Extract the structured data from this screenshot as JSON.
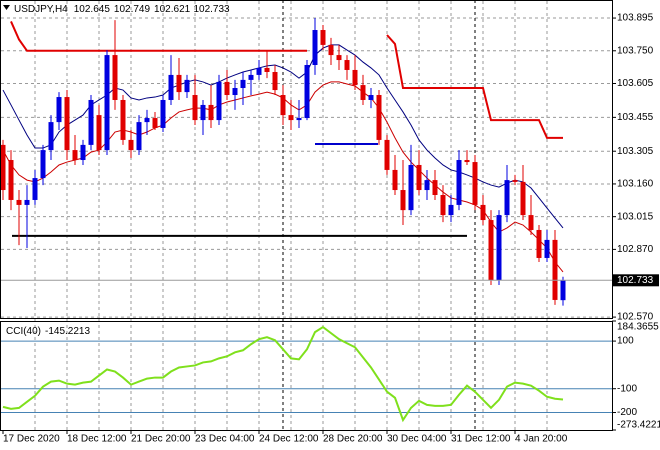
{
  "chart_data": [
    {
      "type": "candlestick",
      "title": "USDJPY,H4",
      "categories": [
        "17 Dec 2020",
        null,
        null,
        null,
        null,
        null,
        null,
        null,
        "18 Dec 12:00",
        null,
        null,
        null,
        null,
        null,
        null,
        null,
        "21 Dec 20:00",
        null,
        null,
        null,
        null,
        null,
        null,
        null,
        "23 Dec 04:00",
        null,
        null,
        null,
        null,
        null,
        null,
        null,
        "24 Dec 12:00",
        null,
        null,
        null,
        null,
        null,
        null,
        null,
        "28 Dec 20:00",
        null,
        null,
        null,
        null,
        null,
        null,
        null,
        "30 Dec 04:00",
        null,
        null,
        null,
        null,
        null,
        null,
        null,
        "31 Dec 12:00",
        null,
        null,
        null,
        null,
        null,
        null,
        null,
        "4 Jan 20:00",
        null,
        null,
        null,
        null,
        null,
        null
      ],
      "ohlc": [
        [
          103.333,
          103.355,
          103.089,
          103.133
        ],
        [
          103.266,
          103.31,
          103.044,
          103.089
        ],
        [
          103.089,
          103.133,
          102.889,
          103.067
        ],
        [
          103.067,
          103.155,
          102.876,
          103.089
        ],
        [
          103.089,
          103.222,
          103.067,
          103.186
        ],
        [
          103.186,
          103.333,
          103.155,
          103.31
        ],
        [
          103.31,
          103.465,
          103.266,
          103.434
        ],
        [
          103.434,
          103.567,
          103.399,
          103.545
        ],
        [
          103.545,
          103.576,
          103.266,
          103.31
        ],
        [
          103.31,
          103.377,
          103.244,
          103.266
        ],
        [
          103.266,
          103.355,
          103.244,
          103.333
        ],
        [
          103.333,
          103.554,
          103.31,
          103.532
        ],
        [
          103.465,
          103.51,
          103.288,
          103.31
        ],
        [
          103.31,
          103.753,
          103.288,
          103.731
        ],
        [
          103.731,
          103.886,
          103.488,
          103.532
        ],
        [
          103.532,
          103.554,
          103.333,
          103.355
        ],
        [
          103.355,
          103.399,
          103.275,
          103.31
        ],
        [
          103.31,
          103.465,
          103.288,
          103.434
        ],
        [
          103.434,
          103.488,
          103.377,
          103.452
        ],
        [
          103.452,
          103.479,
          103.399,
          103.408
        ],
        [
          103.408,
          103.554,
          103.39,
          103.532
        ],
        [
          103.532,
          103.731,
          103.51,
          103.643
        ],
        [
          103.643,
          103.718,
          103.532,
          103.567
        ],
        [
          103.567,
          103.643,
          103.541,
          103.621
        ],
        [
          103.554,
          103.643,
          103.421,
          103.443
        ],
        [
          103.443,
          103.532,
          103.377,
          103.51
        ],
        [
          103.51,
          103.598,
          103.408,
          103.443
        ],
        [
          103.443,
          103.643,
          103.421,
          103.612
        ],
        [
          103.612,
          103.665,
          103.532,
          103.554
        ],
        [
          103.554,
          103.621,
          103.488,
          103.585
        ],
        [
          103.585,
          103.656,
          103.51,
          103.621
        ],
        [
          103.621,
          103.665,
          103.554,
          103.643
        ],
        [
          103.643,
          103.709,
          103.621,
          103.674
        ],
        [
          103.674,
          103.753,
          103.629,
          103.656
        ],
        [
          103.656,
          103.687,
          103.554,
          103.576
        ],
        [
          103.554,
          103.598,
          103.421,
          103.465
        ],
        [
          103.465,
          103.532,
          103.399,
          103.443
        ],
        [
          103.443,
          103.532,
          103.408,
          103.452
        ],
        [
          103.452,
          103.709,
          103.443,
          103.687
        ],
        [
          103.687,
          103.895,
          103.643,
          103.842
        ],
        [
          103.842,
          103.864,
          103.753,
          103.776
        ],
        [
          103.776,
          103.807,
          103.687,
          103.731
        ],
        [
          103.731,
          103.776,
          103.665,
          103.709
        ],
        [
          103.709,
          103.731,
          103.621,
          103.665
        ],
        [
          103.665,
          103.731,
          103.576,
          103.598
        ],
        [
          103.598,
          103.643,
          103.51,
          103.532
        ],
        [
          103.532,
          103.585,
          103.496,
          103.554
        ],
        [
          103.554,
          103.576,
          103.333,
          103.355
        ],
        [
          103.355,
          103.377,
          103.2,
          103.222
        ],
        [
          103.222,
          103.288,
          103.111,
          103.133
        ],
        [
          103.133,
          103.266,
          102.978,
          103.044
        ],
        [
          103.044,
          103.333,
          103.022,
          103.244
        ],
        [
          103.244,
          103.31,
          103.111,
          103.133
        ],
        [
          103.133,
          103.222,
          103.089,
          103.177
        ],
        [
          103.177,
          103.222,
          103.089,
          103.111
        ],
        [
          103.111,
          103.155,
          102.991,
          103.022
        ],
        [
          103.022,
          103.111,
          102.991,
          103.067
        ],
        [
          103.067,
          103.31,
          103.044,
          103.266
        ],
        [
          103.266,
          103.31,
          103.244,
          103.257
        ],
        [
          103.257,
          103.288,
          103.044,
          103.067
        ],
        [
          103.067,
          103.111,
          102.978,
          103
        ],
        [
          103,
          103.044,
          102.712,
          102.734
        ],
        [
          102.734,
          103.044,
          102.712,
          103.022
        ],
        [
          103.022,
          103.244,
          102.991,
          103.177
        ],
        [
          103.177,
          103.2,
          103.155,
          103.169
        ],
        [
          103.169,
          103.244,
          103,
          103.022
        ],
        [
          103.022,
          103.111,
          102.934,
          102.956
        ],
        [
          102.956,
          102.978,
          102.814,
          102.832
        ],
        [
          102.832,
          102.956,
          102.814,
          102.912
        ],
        [
          102.912,
          102.956,
          102.624,
          102.646
        ],
        [
          102.645,
          102.749,
          102.621,
          102.733
        ]
      ],
      "up_color": "#0000e0",
      "down_color": "#e00000",
      "series": [
        {
          "color": "#000080",
          "width": 1,
          "values": [
            103.576,
            103.51,
            103.443,
            103.377,
            103.319,
            103.319,
            103.333,
            103.39,
            103.421,
            103.443,
            103.465,
            103.51,
            103.532,
            103.554,
            103.585,
            103.576,
            103.541,
            103.532,
            103.541,
            103.545,
            103.554,
            103.585,
            103.598,
            103.612,
            103.621,
            103.612,
            103.598,
            103.612,
            103.629,
            103.643,
            103.656,
            103.665,
            103.674,
            103.683,
            103.687,
            103.674,
            103.656,
            103.629,
            103.656,
            103.731,
            103.762,
            103.776,
            103.776,
            103.753,
            103.731,
            103.7,
            103.674,
            103.643,
            103.585,
            103.532,
            103.479,
            103.421,
            103.355,
            103.31,
            103.275,
            103.244,
            103.222,
            103.213,
            103.2,
            103.186,
            103.169,
            103.155,
            103.146,
            103.164,
            103.177,
            103.169,
            103.142,
            103.098,
            103.053,
            103.009,
            102.965
          ]
        },
        {
          "color": "#cc0000",
          "width": 1,
          "values": [
            103.31,
            103.244,
            103.2,
            103.177,
            103.169,
            103.186,
            103.213,
            103.244,
            103.257,
            103.266,
            103.275,
            103.301,
            103.31,
            103.346,
            103.39,
            103.399,
            103.39,
            103.377,
            103.39,
            103.408,
            103.421,
            103.452,
            103.479,
            103.488,
            103.496,
            103.496,
            103.488,
            103.51,
            103.523,
            103.532,
            103.541,
            103.55,
            103.558,
            103.567,
            103.558,
            103.541,
            103.51,
            103.488,
            103.51,
            103.567,
            103.598,
            103.612,
            103.612,
            103.603,
            103.594,
            103.567,
            103.541,
            103.496,
            103.434,
            103.364,
            103.301,
            103.257,
            103.222,
            103.186,
            103.155,
            103.124,
            103.098,
            103.089,
            103.08,
            103.067,
            103.044,
            102.991,
            102.947,
            102.965,
            102.991,
            102.978,
            102.947,
            102.912,
            102.876,
            102.814,
            102.77
          ]
        },
        {
          "color": "#e00000",
          "width": 2,
          "values": [
            null,
            103.88,
            103.8,
            103.75,
            103.75,
            103.75,
            103.75,
            103.75,
            103.75,
            103.75,
            103.75,
            103.75,
            103.75,
            103.75,
            103.75,
            103.75,
            103.75,
            103.75,
            103.75,
            103.75,
            103.75,
            103.75,
            103.75,
            103.75,
            103.75,
            103.75,
            103.75,
            103.75,
            103.75,
            103.75,
            103.75,
            103.75,
            103.75,
            103.75,
            103.75,
            103.75,
            103.75,
            103.75,
            103.75,
            null,
            null,
            null,
            null,
            null,
            null,
            null,
            null,
            null,
            103.82,
            103.78,
            103.585,
            103.585,
            103.585,
            103.585,
            103.585,
            103.585,
            103.585,
            103.585,
            103.585,
            103.585,
            103.585,
            103.443,
            103.443,
            103.443,
            103.443,
            103.443,
            103.443,
            103.443,
            103.364,
            103.364,
            103.364
          ]
        }
      ],
      "levels": [
        {
          "value": 102.93,
          "color": "#000000"
        },
        {
          "value": 103.337,
          "color": "#0000cc"
        }
      ],
      "ylim": [
        102.566,
        103.975
      ],
      "yticks": [
        103.895,
        {
          "value": 103.75,
          "label": "103.750"
        },
        103.605,
        103.455,
        103.305,
        {
          "value": 103.16,
          "label": "103.160"
        },
        103.015,
        {
          "value": 102.87,
          "label": "102.870"
        },
        {
          "value": 102.57,
          "label": "102.570"
        }
      ],
      "grid": true
    },
    {
      "type": "line",
      "title": "CCI(40)",
      "color": "#7fe01c",
      "values": [
        -176.3,
        -184.8,
        -180.5,
        -155.1,
        -129.6,
        -91.4,
        -70.2,
        -66,
        -78.7,
        -82.9,
        -74.5,
        -70.2,
        -44.7,
        -19.3,
        -27.8,
        -53.2,
        -82.9,
        -70.2,
        -57.5,
        -53.2,
        -53.2,
        -27.8,
        -10.8,
        -6.5,
        -2.3,
        10.4,
        14.7,
        27.4,
        35.9,
        52.9,
        61.4,
        86.8,
        108,
        116.5,
        103.8,
        65.6,
        27.4,
        23.2,
        65.6,
        137.7,
        158.9,
        133.5,
        108,
        91.1,
        74.1,
        31.7,
        -10.8,
        -61.7,
        -112.6,
        -138.1,
        -231.4,
        -180.5,
        -150.8,
        -167.8,
        -172,
        -172,
        -167.8,
        -125.3,
        -87.2,
        -112.6,
        -146.6,
        -180.5,
        -146.6,
        -91.4,
        -74.5,
        -78.7,
        -87.2,
        -108.4,
        -133.8,
        -142.3,
        -145.2213
      ],
      "ylim": [
        -273.4221,
        184.3655
      ],
      "yticks": [
        184.3655,
        100,
        -100,
        -200,
        -273.4221
      ],
      "levels": [
        100,
        -100,
        -200
      ],
      "level_color": "#4682b4"
    }
  ]
}
